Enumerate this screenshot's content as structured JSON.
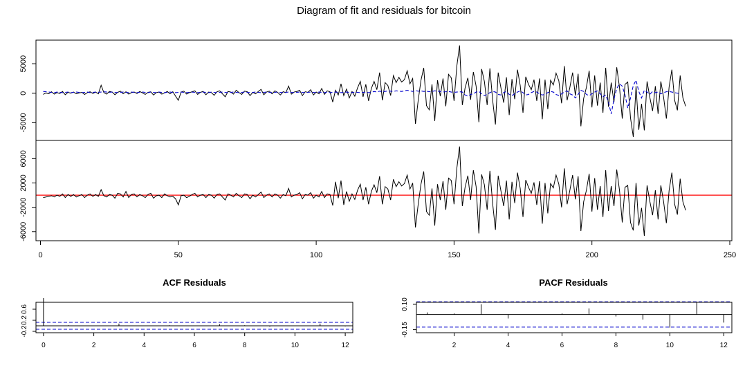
{
  "title": "Diagram of fit and residuals for bitcoin",
  "chart_data": [
    {
      "id": "fit",
      "type": "line",
      "title": "",
      "xlim": [
        0,
        250
      ],
      "ylim": [
        -8000,
        9000
      ],
      "x_ticks": [
        0,
        50,
        100,
        150,
        200,
        250
      ],
      "y_ticks": [
        -5000,
        0,
        5000
      ],
      "y_tick_labels": [
        "-5000",
        "0",
        "5000"
      ],
      "series": [
        {
          "style": "solid",
          "color": "#000000",
          "x_start": 1,
          "values": [
            -200,
            50,
            -100,
            250,
            -150,
            100,
            -50,
            300,
            -250,
            150,
            0,
            200,
            -100,
            50,
            150,
            -200,
            100,
            250,
            -50,
            200,
            -100,
            1350,
            100,
            -150,
            300,
            200,
            -250,
            150,
            350,
            -100,
            250,
            -150,
            100,
            200,
            -50,
            300,
            50,
            -200,
            150,
            250,
            -300,
            100,
            200,
            -150,
            50,
            300,
            -100,
            250,
            -500,
            -1200,
            200,
            350,
            -150,
            100,
            250,
            400,
            -200,
            150,
            300,
            -250,
            200,
            100,
            -350,
            250,
            400,
            -100,
            -600,
            300,
            200,
            -150,
            500,
            100,
            -200,
            350,
            250,
            -400,
            150,
            -100,
            300,
            650,
            -250,
            200,
            350,
            -100,
            400,
            150,
            -300,
            250,
            100,
            1200,
            -150,
            200,
            300,
            500,
            -400,
            250,
            150,
            600,
            -300,
            200,
            -100,
            800,
            -200,
            400,
            250,
            -1500,
            500,
            -300,
            1600,
            -400,
            700,
            -800,
            300,
            -500,
            900,
            2000,
            -600,
            1500,
            -1300,
            800,
            2000,
            600,
            3500,
            -1200,
            1800,
            1300,
            -400,
            3000,
            1800,
            2700,
            1900,
            2300,
            3800,
            1600,
            2500,
            -5200,
            -1200,
            2200,
            4300,
            -2100,
            -2800,
            1500,
            -4700,
            2200,
            -500,
            2500,
            -2200,
            3200,
            2600,
            -1300,
            4600,
            8100,
            -2000,
            900,
            2600,
            -1100,
            3600,
            1200,
            -4900,
            4100,
            2000,
            -2000,
            4200,
            -1200,
            -5300,
            3500,
            900,
            -1600,
            2700,
            -3700,
            2400,
            -1000,
            4000,
            1300,
            -3300,
            2800,
            1500,
            600,
            2300,
            -1300,
            2500,
            -4400,
            2300,
            -2700,
            2200,
            1400,
            3400,
            2100,
            -1700,
            4600,
            -1200,
            1000,
            3500,
            -400,
            3300,
            -5600,
            -900,
            1000,
            3800,
            -2400,
            3000,
            -2100,
            1800,
            -3300,
            4300,
            -2300,
            1800,
            -1500,
            4400,
            1000,
            -4300,
            1500,
            1900,
            -4200,
            -7400,
            1200,
            -6200,
            -1800,
            -6300,
            2000,
            -700,
            -3000,
            1200,
            -3500,
            2000,
            -700,
            -4300,
            1100,
            4000,
            -1200,
            -2900,
            3000,
            -800,
            -2200
          ],
          "value_note": "Solid black line is the observed series; values read approximately from the plot."
        },
        {
          "style": "dashed",
          "color": "#0000cc",
          "x_start": 1,
          "values": [
            300,
            250,
            200,
            150,
            100,
            200,
            150,
            100,
            150,
            200,
            100,
            150,
            200,
            150,
            100,
            150,
            200,
            100,
            150,
            200,
            150,
            200,
            250,
            200,
            150,
            200,
            150,
            100,
            150,
            200,
            150,
            100,
            200,
            150,
            100,
            150,
            200,
            150,
            100,
            200,
            150,
            100,
            200,
            150,
            100,
            150,
            200,
            150,
            100,
            150,
            200,
            150,
            100,
            150,
            200,
            150,
            100,
            150,
            200,
            150,
            100,
            200,
            150,
            100,
            150,
            200,
            150,
            100,
            150,
            200,
            150,
            100,
            150,
            200,
            150,
            100,
            150,
            200,
            150,
            100,
            150,
            200,
            150,
            100,
            150,
            200,
            150,
            100,
            150,
            200,
            150,
            100,
            150,
            200,
            150,
            100,
            150,
            200,
            150,
            100,
            200,
            150,
            100,
            200,
            100,
            150,
            200,
            150,
            100,
            150,
            200,
            150,
            100,
            200,
            150,
            100,
            150,
            200,
            100,
            150,
            300,
            200,
            350,
            250,
            300,
            400,
            350,
            300,
            400,
            350,
            300,
            400,
            500,
            400,
            300,
            450,
            350,
            400,
            300,
            350,
            250,
            300,
            400,
            350,
            300,
            200,
            250,
            300,
            200,
            150,
            200,
            250,
            200,
            -300,
            -500,
            -200,
            -100,
            200,
            300,
            -100,
            -400,
            -200,
            100,
            300,
            200,
            -200,
            -300,
            100,
            300,
            -200,
            -400,
            -100,
            200,
            400,
            100,
            -300,
            -200,
            100,
            300,
            200,
            -100,
            -300,
            -200,
            100,
            300,
            200,
            -200,
            -400,
            -100,
            200,
            400,
            -100,
            -300,
            -800,
            -200,
            500,
            300,
            -200,
            -400,
            -100,
            200,
            400,
            -100,
            -600,
            -300,
            -1500,
            -3500,
            -1000,
            800,
            1600,
            1200,
            -300,
            -2500,
            -800,
            1300,
            2200,
            300,
            -800,
            500,
            200,
            -200,
            300,
            100,
            200,
            -100,
            100,
            250,
            300,
            200,
            100,
            0,
            -100
          ],
          "value_note": "Dashed blue line is the fitted series; values read approximately from the plot."
        }
      ]
    },
    {
      "id": "residuals",
      "type": "line",
      "title": "",
      "xlim": [
        0,
        250
      ],
      "ylim": [
        -7500,
        9000
      ],
      "x_ticks": [
        0,
        50,
        100,
        150,
        200,
        250
      ],
      "x_tick_labels": [
        "0",
        "50",
        "100",
        "150",
        "200",
        "250"
      ],
      "y_ticks": [
        -6000,
        -2000,
        2000,
        6000
      ],
      "y_tick_labels": [
        "-6000",
        "-2000",
        "2000",
        "6000"
      ],
      "reference_line": {
        "y": 0,
        "color": "#ff0000"
      },
      "series": [
        {
          "style": "solid",
          "color": "#000000",
          "x_start": 1,
          "values": [
            -400,
            -300,
            -200,
            -100,
            -300,
            0,
            -200,
            200,
            -400,
            100,
            -200,
            100,
            -300,
            -100,
            100,
            -400,
            0,
            200,
            -200,
            100,
            -200,
            900,
            -100,
            -300,
            100,
            0,
            -500,
            300,
            200,
            -300,
            600,
            -400,
            100,
            200,
            -300,
            100,
            -100,
            -400,
            100,
            300,
            -500,
            -100,
            0,
            -400,
            200,
            -100,
            -300,
            -200,
            -600,
            -1600,
            -100,
            0,
            -400,
            -200,
            100,
            300,
            -300,
            0,
            100,
            -400,
            100,
            0,
            -500,
            100,
            200,
            -300,
            -800,
            200,
            0,
            -300,
            300,
            -100,
            -400,
            200,
            100,
            -600,
            0,
            -300,
            100,
            500,
            -400,
            0,
            200,
            -300,
            200,
            0,
            -500,
            100,
            -100,
            1100,
            -300,
            0,
            100,
            400,
            -600,
            100,
            0,
            400,
            -500,
            0,
            -300,
            600,
            -400,
            200,
            100,
            -1700,
            2200,
            -500,
            2400,
            -1600,
            600,
            -1000,
            200,
            -700,
            800,
            1800,
            -800,
            1300,
            -1500,
            600,
            1700,
            400,
            3100,
            -1500,
            1400,
            1000,
            -800,
            2600,
            1400,
            2200,
            1500,
            1900,
            3300,
            1000,
            2000,
            -5300,
            -1500,
            1800,
            3900,
            -2700,
            -3300,
            1100,
            -5000,
            1800,
            -800,
            2300,
            -2400,
            2800,
            2400,
            -1500,
            4400,
            8000,
            -1800,
            1300,
            3200,
            -800,
            4100,
            1400,
            -6300,
            3400,
            1700,
            -2400,
            4000,
            -1400,
            -5700,
            3200,
            700,
            -1800,
            2400,
            -4000,
            2200,
            -1300,
            3700,
            1100,
            -3600,
            2500,
            1300,
            300,
            2100,
            -1600,
            2300,
            -4700,
            2000,
            -3000,
            1900,
            1200,
            3300,
            1800,
            -2000,
            4400,
            -1500,
            800,
            3300,
            -700,
            3100,
            -5900,
            -1100,
            800,
            3500,
            -2700,
            2800,
            -2400,
            1500,
            -3600,
            4100,
            -2600,
            1500,
            -1800,
            4200,
            800,
            -4500,
            1300,
            1600,
            -4500,
            -5800,
            2000,
            -5000,
            -2100,
            -6700,
            1600,
            -1000,
            -3300,
            800,
            -4000,
            1600,
            -1100,
            -4600,
            800,
            3700,
            -1500,
            -3200,
            2700,
            -1100,
            -2500
          ],
          "value_note": "Residuals; values read approximately from the plot."
        }
      ]
    },
    {
      "id": "acf",
      "type": "bar",
      "title": "ACF Residuals",
      "xlim": [
        -0.3,
        12.3
      ],
      "ylim": [
        -0.25,
        0.85
      ],
      "x_ticks": [
        0,
        2,
        4,
        6,
        8,
        10,
        12
      ],
      "x_tick_labels": [
        "0",
        "2",
        "4",
        "6",
        "8",
        "10",
        "12"
      ],
      "y_ticks": [
        -0.2,
        0.2,
        0.6
      ],
      "y_tick_labels": [
        "-0.2",
        "0.2",
        "0.6"
      ],
      "lags": [
        0,
        1,
        2,
        3,
        4,
        5,
        6,
        7,
        8,
        9,
        10,
        11,
        12
      ],
      "values": [
        1.0,
        0.02,
        0.01,
        0.08,
        -0.01,
        0.02,
        0.01,
        0.06,
        0.02,
        -0.03,
        -0.01,
        0.08,
        -0.02
      ],
      "confidence_bounds": [
        0.125,
        -0.125
      ]
    },
    {
      "id": "pacf",
      "type": "bar",
      "title": "PACF Residuals",
      "xlim": [
        0.6,
        12.3
      ],
      "ylim": [
        -0.18,
        0.12
      ],
      "x_ticks": [
        2,
        4,
        6,
        8,
        10,
        12
      ],
      "x_tick_labels": [
        "2",
        "4",
        "6",
        "8",
        "10",
        "12"
      ],
      "y_ticks": [
        -0.15,
        0.1
      ],
      "y_tick_labels": [
        "-0.15",
        "0.10"
      ],
      "lags": [
        1,
        2,
        3,
        4,
        5,
        6,
        7,
        8,
        9,
        10,
        11,
        12
      ],
      "values": [
        0.02,
        0.01,
        0.1,
        -0.04,
        0.0,
        0.01,
        0.06,
        -0.02,
        -0.05,
        -0.13,
        0.12,
        -0.08
      ],
      "confidence_bounds": [
        0.125,
        -0.125
      ]
    }
  ]
}
